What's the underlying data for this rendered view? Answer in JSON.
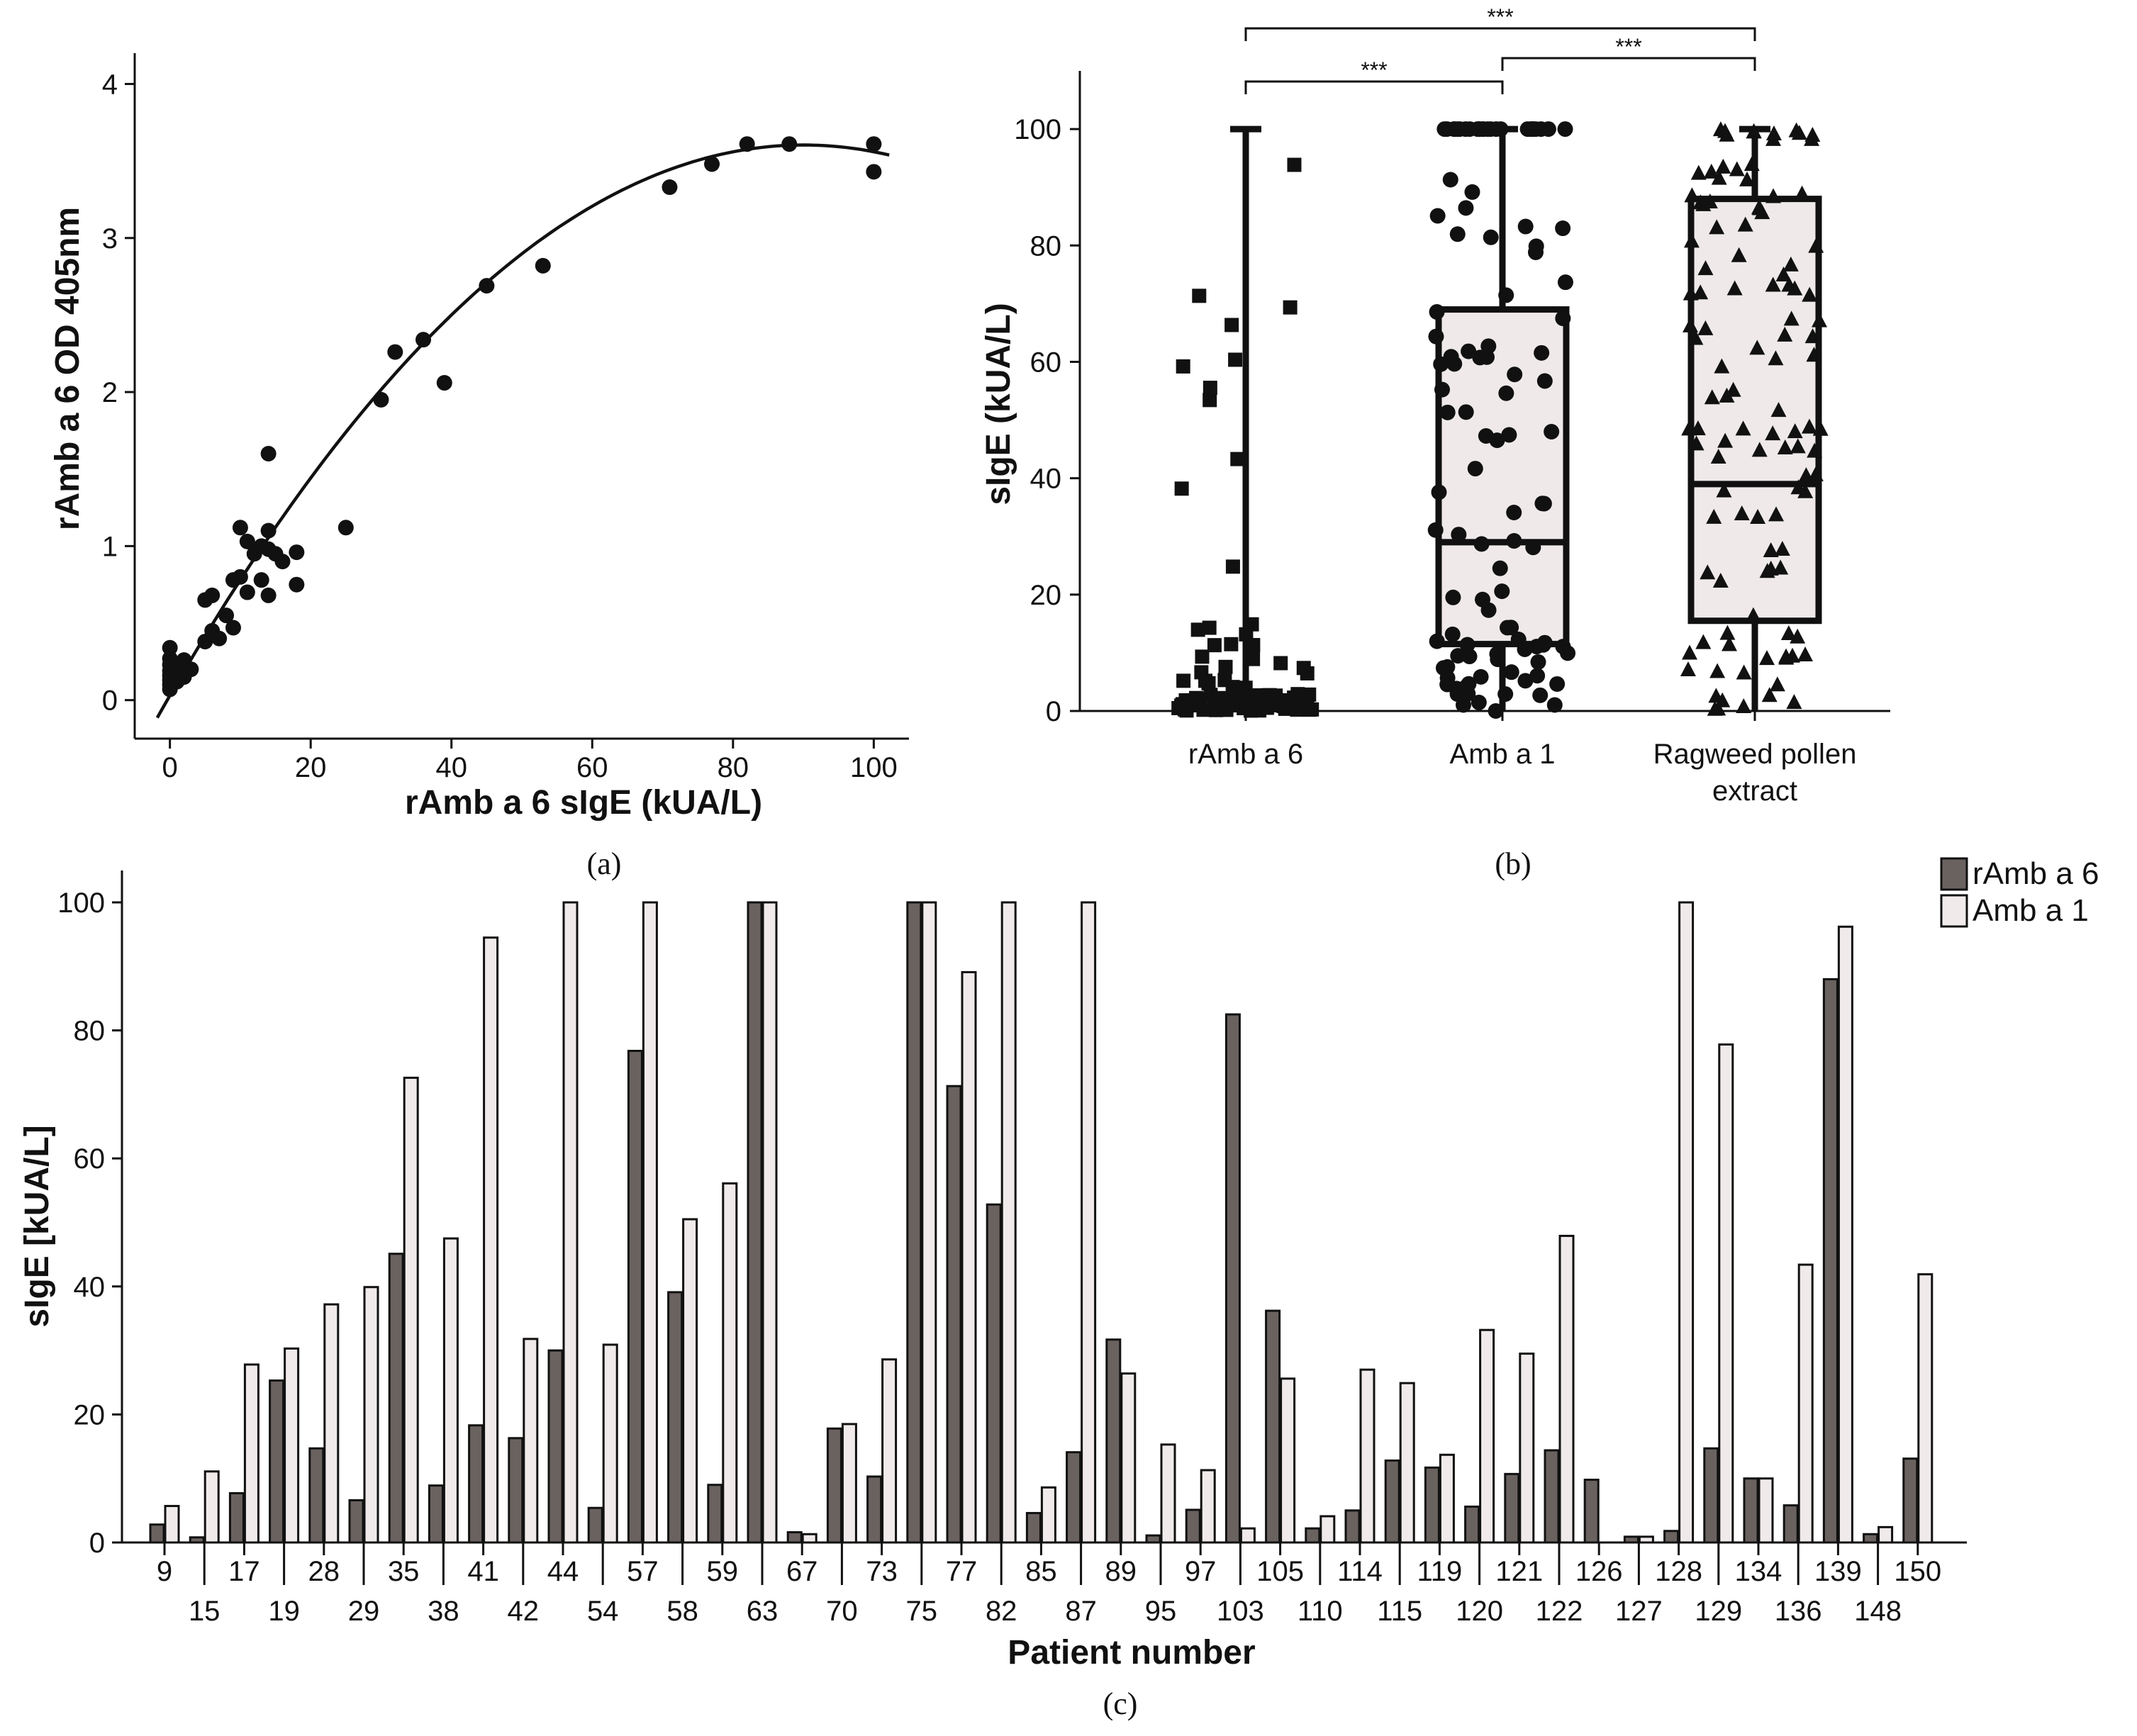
{
  "colors": {
    "dark_bar": "#6a625f",
    "light_bar": "#f0eaea",
    "box_fill": "#efe9e9",
    "ink": "#111111"
  },
  "chart_data": [
    {
      "id": "a",
      "type": "scatter",
      "panel_label": "(a)",
      "xlabel": "rAmb a 6 sIgE (kUA/L)",
      "ylabel": "rAmb a 6 OD 405nm",
      "xlim": [
        -5,
        105
      ],
      "ylim": [
        -0.25,
        4.2
      ],
      "xticks": [
        0,
        20,
        40,
        60,
        80,
        100
      ],
      "yticks": [
        0,
        1,
        2,
        3,
        4
      ],
      "points": [
        [
          0,
          0.07
        ],
        [
          0,
          0.1
        ],
        [
          0,
          0.13
        ],
        [
          0,
          0.16
        ],
        [
          0,
          0.19
        ],
        [
          0,
          0.23
        ],
        [
          0,
          0.27
        ],
        [
          0,
          0.34
        ],
        [
          1,
          0.12
        ],
        [
          1,
          0.18
        ],
        [
          2,
          0.15
        ],
        [
          2,
          0.26
        ],
        [
          3,
          0.2
        ],
        [
          5,
          0.38
        ],
        [
          5,
          0.65
        ],
        [
          6,
          0.45
        ],
        [
          6,
          0.68
        ],
        [
          7,
          0.4
        ],
        [
          8,
          0.55
        ],
        [
          9,
          0.47
        ],
        [
          9,
          0.78
        ],
        [
          10,
          0.8
        ],
        [
          10,
          1.12
        ],
        [
          11,
          0.7
        ],
        [
          11,
          1.03
        ],
        [
          12,
          0.95
        ],
        [
          13,
          0.78
        ],
        [
          13,
          1.0
        ],
        [
          14,
          0.98
        ],
        [
          14,
          1.1
        ],
        [
          14,
          1.6
        ],
        [
          14,
          0.68
        ],
        [
          15,
          0.95
        ],
        [
          16,
          0.9
        ],
        [
          18,
          0.96
        ],
        [
          18,
          0.75
        ],
        [
          25,
          1.12
        ],
        [
          30,
          1.95
        ],
        [
          32,
          2.26
        ],
        [
          36,
          2.34
        ],
        [
          39,
          2.06
        ],
        [
          45,
          2.69
        ],
        [
          53,
          2.82
        ],
        [
          71,
          3.33
        ],
        [
          77,
          3.48
        ],
        [
          82,
          3.61
        ],
        [
          88,
          3.61
        ],
        [
          100,
          3.61
        ],
        [
          100,
          3.43
        ]
      ],
      "fit_curve": {
        "type": "polynomial",
        "description": "quadratic fit",
        "x_range": [
          -5,
          105
        ]
      }
    },
    {
      "id": "b",
      "type": "box",
      "panel_label": "(b)",
      "ylabel": "sIgE (kUA/L)",
      "ylim": [
        0,
        110
      ],
      "yticks": [
        0,
        20,
        40,
        60,
        80,
        100
      ],
      "categories": [
        "rAmb a 6",
        "Amb a 1",
        "Ragweed pollen extract"
      ],
      "category_lines": [
        [
          "rAmb a 6"
        ],
        [
          "Amb a 1"
        ],
        [
          "Ragweed pollen",
          "extract"
        ]
      ],
      "boxes": [
        {
          "name": "rAmb a 6",
          "min": 0,
          "q1": 0.3,
          "median": 0.8,
          "q3": 2.5,
          "max": 100,
          "marker": "square"
        },
        {
          "name": "Amb a 1",
          "min": 0,
          "q1": 11.5,
          "median": 29,
          "q3": 69,
          "max": 100,
          "marker": "circle"
        },
        {
          "name": "Ragweed pollen extract",
          "min": 0,
          "q1": 15.5,
          "median": 39,
          "q3": 88,
          "max": 100,
          "marker": "triangle"
        }
      ],
      "significance": [
        {
          "from": 0,
          "to": 1,
          "label": "***"
        },
        {
          "from": 1,
          "to": 2,
          "label": "***"
        },
        {
          "from": 0,
          "to": 2,
          "label": "***"
        }
      ]
    },
    {
      "id": "c",
      "type": "bar",
      "panel_label": "(c)",
      "xlabel": "Patient number",
      "ylabel": "sIgE [kUA/L]",
      "ylim": [
        0,
        105
      ],
      "yticks": [
        0,
        20,
        40,
        60,
        80,
        100
      ],
      "categories": [
        "9",
        "15",
        "17",
        "19",
        "28",
        "29",
        "35",
        "38",
        "41",
        "42",
        "44",
        "54",
        "57",
        "58",
        "59",
        "63",
        "67",
        "70",
        "73",
        "75",
        "77",
        "82",
        "85",
        "87",
        "89",
        "95",
        "97",
        "103",
        "105",
        "110",
        "114",
        "115",
        "119",
        "120",
        "121",
        "122",
        "126",
        "127",
        "128",
        "129",
        "134",
        "136",
        "139",
        "148",
        "150"
      ],
      "series": [
        {
          "name": "rAmb a 6",
          "values": [
            2.8,
            0.8,
            7.7,
            25.3,
            14.7,
            6.6,
            45.1,
            8.9,
            18.3,
            16.3,
            30.0,
            5.4,
            76.8,
            39.1,
            9.0,
            100,
            1.6,
            17.8,
            10.3,
            100,
            71.3,
            52.8,
            4.6,
            14.1,
            31.7,
            1.1,
            5.1,
            82.5,
            36.2,
            2.2,
            5.0,
            12.8,
            11.7,
            5.6,
            10.7,
            14.4,
            9.8,
            0.9,
            1.8,
            14.7,
            10.0,
            5.8,
            88.0,
            1.3,
            13.1
          ]
        },
        {
          "name": "Amb a 1",
          "values": [
            5.7,
            11.1,
            27.8,
            30.3,
            37.2,
            39.9,
            72.6,
            47.5,
            94.5,
            31.8,
            100,
            30.9,
            100,
            50.5,
            56.1,
            100,
            1.3,
            18.5,
            28.6,
            100,
            89.1,
            100,
            8.6,
            100,
            26.4,
            15.3,
            11.3,
            2.2,
            25.6,
            4.1,
            27.0,
            24.9,
            13.7,
            33.2,
            29.5,
            47.9,
            0,
            0.9,
            100,
            77.8,
            10.0,
            43.4,
            96.2,
            2.4,
            41.9
          ]
        }
      ],
      "legend": {
        "position": "top-right",
        "entries": [
          "rAmb a 6",
          "Amb a 1"
        ]
      }
    }
  ]
}
